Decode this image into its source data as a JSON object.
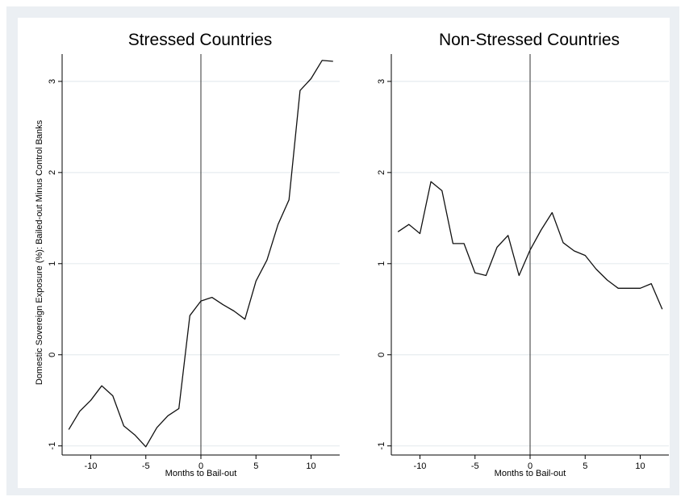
{
  "chart_data": [
    {
      "type": "line",
      "title": "Stressed Countries",
      "xlabel": "Months to Bail-out",
      "ylabel": "Domestic Sovereign Exposure (%): Bailed-out Minus Control Banks",
      "xlim": [
        -12.6,
        12.6
      ],
      "ylim": [
        -1.1,
        3.3
      ],
      "xticks": [
        -10,
        -5,
        0,
        5,
        10
      ],
      "xtick_labels": [
        "-10",
        "-5",
        "0",
        "5",
        "10"
      ],
      "yticks": [
        -1,
        0,
        1,
        2,
        3
      ],
      "ytick_labels": [
        "-1",
        "0",
        "1",
        "2",
        "3"
      ],
      "grid": true,
      "vline": 0,
      "series": [
        {
          "x": [
            -12,
            -11,
            -10,
            -9,
            -8,
            -7,
            -6,
            -5,
            -4,
            -3,
            -2,
            -1,
            0,
            1,
            2,
            3,
            4,
            5,
            6,
            7,
            8,
            9,
            10,
            11,
            12
          ],
          "y": [
            -0.82,
            -0.62,
            -0.5,
            -0.34,
            -0.45,
            -0.78,
            -0.88,
            -1.01,
            -0.8,
            -0.67,
            -0.59,
            0.43,
            0.59,
            0.63,
            0.55,
            0.48,
            0.39,
            0.81,
            1.04,
            1.43,
            1.7,
            2.9,
            3.03,
            3.23,
            3.22
          ]
        }
      ]
    },
    {
      "type": "line",
      "title": "Non-Stressed Countries",
      "xlabel": "Months to Bail-out",
      "ylabel": "",
      "xlim": [
        -12.6,
        12.6
      ],
      "ylim": [
        -1.1,
        3.3
      ],
      "xticks": [
        -10,
        -5,
        0,
        5,
        10
      ],
      "xtick_labels": [
        "-10",
        "-5",
        "0",
        "5",
        "10"
      ],
      "yticks": [
        -1,
        0,
        1,
        2,
        3
      ],
      "ytick_labels": [
        "-1",
        "0",
        "1",
        "2",
        "3"
      ],
      "grid": true,
      "vline": 0,
      "series": [
        {
          "x": [
            -12,
            -11,
            -10,
            -9,
            -8,
            -7,
            -6,
            -5,
            -4,
            -3,
            -2,
            -1,
            0,
            1,
            2,
            3,
            4,
            5,
            6,
            7,
            8,
            9,
            10,
            11,
            12
          ],
          "y": [
            1.35,
            1.43,
            1.33,
            1.9,
            1.8,
            1.22,
            1.22,
            0.9,
            0.87,
            1.18,
            1.31,
            0.87,
            1.15,
            1.37,
            1.56,
            1.23,
            1.14,
            1.09,
            0.94,
            0.82,
            0.73,
            0.73,
            0.73,
            0.78,
            0.5
          ]
        }
      ]
    }
  ]
}
